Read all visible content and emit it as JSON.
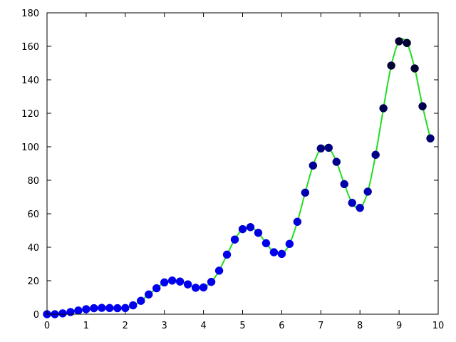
{
  "chart_data": {
    "type": "scatter",
    "title": "",
    "xlabel": "",
    "ylabel": "",
    "xlim": [
      0,
      10
    ],
    "ylim": [
      0,
      180
    ],
    "x_ticks": [
      0,
      1,
      2,
      3,
      4,
      5,
      6,
      7,
      8,
      9,
      10
    ],
    "y_ticks": [
      0,
      20,
      40,
      60,
      80,
      100,
      120,
      140,
      160,
      180
    ],
    "x_tick_labels": [
      "0",
      "1",
      "2",
      "3",
      "4",
      "5",
      "6",
      "7",
      "8",
      "9",
      "10"
    ],
    "y_tick_labels": [
      "0",
      "20",
      "40",
      "60",
      "80",
      "100",
      "120",
      "140",
      "160",
      "180"
    ],
    "grid": false,
    "legend": "none",
    "curve_color": "#22dd22",
    "marker_color_low": "#0000ee",
    "marker_color_high": "#000033",
    "series": [
      {
        "kind": "points",
        "x": [
          0.0,
          0.2,
          0.4,
          0.6,
          0.8,
          1.0,
          1.2,
          1.4,
          1.6,
          1.8,
          2.0,
          2.2,
          2.4,
          2.6,
          2.8,
          3.0,
          3.2,
          3.4,
          3.6,
          3.8,
          4.0,
          4.2,
          4.4,
          4.6,
          4.8,
          5.0,
          5.2,
          5.4,
          5.6,
          5.8,
          6.0,
          6.2,
          6.4,
          6.6,
          6.8,
          7.0,
          7.2,
          7.4,
          7.6,
          7.8,
          8.0,
          8.2,
          8.4,
          8.6,
          8.8,
          9.0,
          9.2,
          9.4,
          9.6,
          9.8
        ],
        "y": [
          0.0,
          0.0,
          0.5,
          1.3,
          2.2,
          3.0,
          3.6,
          3.8,
          3.7,
          3.6,
          3.7,
          5.3,
          8.0,
          11.8,
          15.5,
          19.0,
          20.1,
          19.5,
          17.8,
          15.8,
          16.0,
          19.3,
          26.0,
          35.6,
          44.6,
          50.8,
          52.0,
          48.6,
          42.4,
          37.0,
          36.0,
          42.0,
          55.2,
          72.6,
          88.8,
          99.0,
          99.4,
          91.0,
          77.7,
          66.5,
          63.5,
          73.2,
          95.2,
          123.0,
          148.5,
          163.0,
          162.0,
          146.8,
          124.2,
          105.0
        ]
      }
    ]
  }
}
